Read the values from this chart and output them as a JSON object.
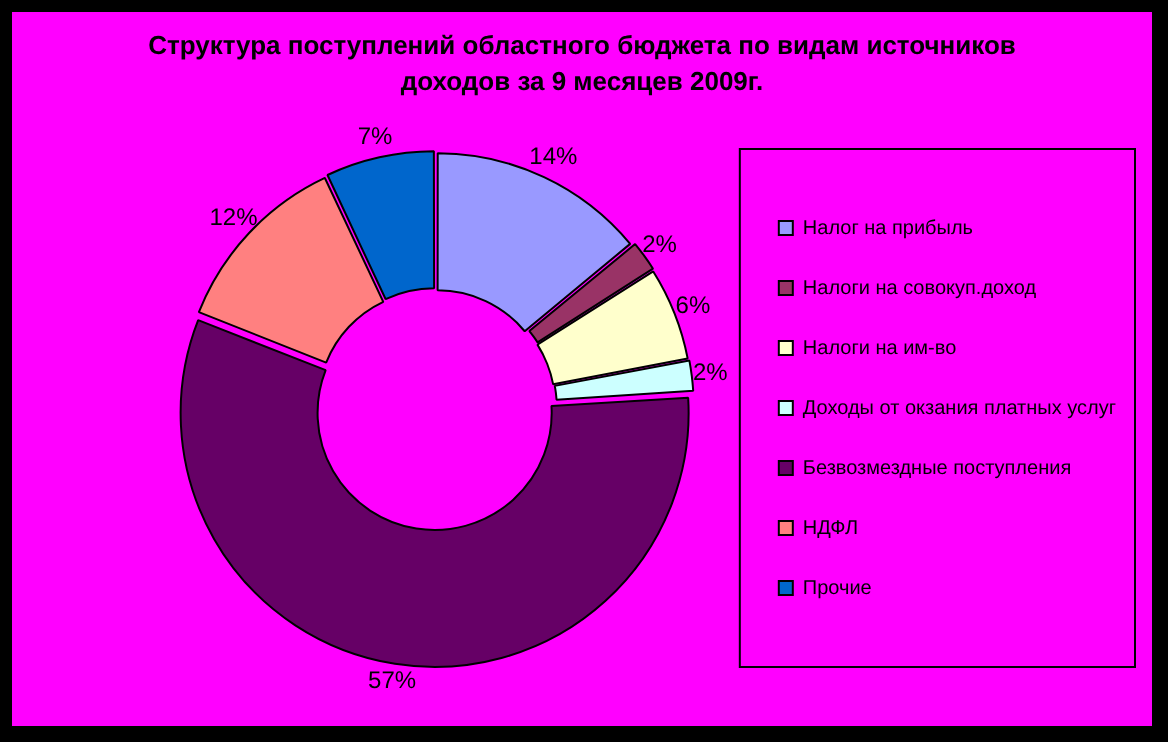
{
  "chart_data": {
    "type": "donut",
    "title": "Структура поступлений областного бюджета по видам источников доходов  за 9 месяцев 2009г.",
    "categories": [
      "Налог на прибыль",
      "Налоги на совокуп.доход",
      "Налоги на им-во",
      "Доходы от окзания платных услуг",
      "Безвозмездные поступления",
      "НДФЛ",
      "Прочие"
    ],
    "values": [
      14,
      2,
      6,
      2,
      57,
      12,
      7
    ],
    "value_labels": [
      "14%",
      "2%",
      "6%",
      "2%",
      "57%",
      "12%",
      "7%"
    ],
    "colors": [
      "#9999ff",
      "#993366",
      "#ffffcc",
      "#ccffff",
      "#660066",
      "#ff8080",
      "#0066cc"
    ],
    "legend": "right"
  }
}
